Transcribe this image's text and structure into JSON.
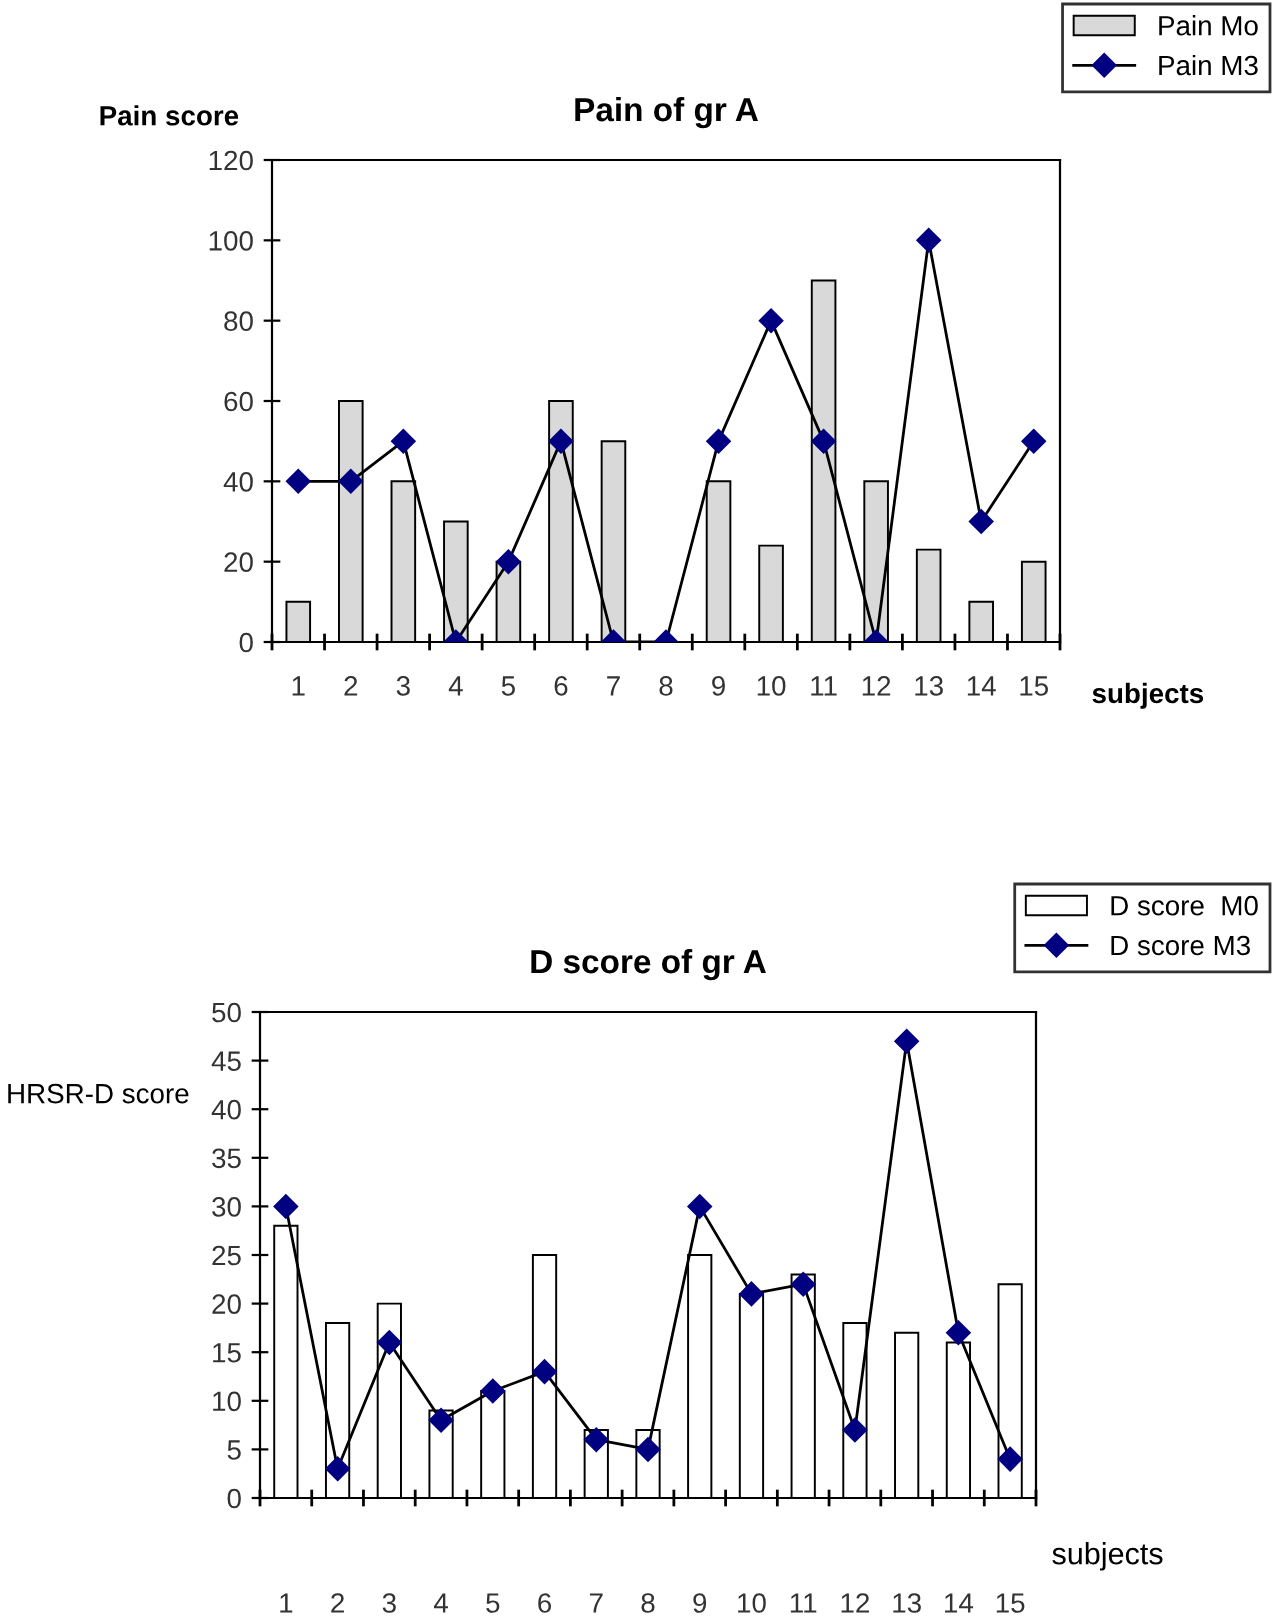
{
  "chart_data": [
    {
      "type": "bar",
      "title": "Pain of gr A",
      "ylabel": "Pain score",
      "xlabel": "subjects",
      "categories": [
        "1",
        "2",
        "3",
        "4",
        "5",
        "6",
        "7",
        "8",
        "9",
        "10",
        "11",
        "12",
        "13",
        "14",
        "15"
      ],
      "series": [
        {
          "name": "Pain Mo",
          "color": "#d9d9d9",
          "values": [
            10,
            60,
            40,
            30,
            20,
            60,
            50,
            0,
            40,
            24,
            90,
            40,
            23,
            10,
            20
          ]
        },
        {
          "name": "Pain M3",
          "type": "line",
          "color": "#000080",
          "values": [
            40,
            40,
            50,
            0,
            20,
            50,
            0,
            0,
            50,
            80,
            50,
            0,
            100,
            30,
            50
          ]
        }
      ],
      "ylim": [
        0,
        120
      ],
      "yticks": [
        0,
        20,
        40,
        60,
        80,
        100,
        120
      ],
      "legend": "top right",
      "marker": "diamond",
      "grid": false
    },
    {
      "type": "bar",
      "title": "D score of gr A",
      "ylabel": "HRSR-D score",
      "xlabel": "subjects",
      "categories": [
        "1",
        "2",
        "3",
        "4",
        "5",
        "6",
        "7",
        "8",
        "9",
        "10",
        "11",
        "12",
        "13",
        "14",
        "15"
      ],
      "series": [
        {
          "name": "D score  M0",
          "color": "#ffffff",
          "values": [
            28,
            18,
            20,
            9,
            11,
            25,
            7,
            7,
            25,
            21,
            23,
            18,
            17,
            16,
            22
          ]
        },
        {
          "name": "D score M3",
          "type": "line",
          "color": "#000080",
          "values": [
            30,
            3,
            16,
            8,
            11,
            13,
            6,
            5,
            30,
            21,
            22,
            7,
            47,
            17,
            4
          ]
        }
      ],
      "ylim": [
        0,
        50
      ],
      "yticks": [
        0,
        5,
        10,
        15,
        20,
        25,
        30,
        35,
        40,
        45,
        50
      ],
      "legend": "top right",
      "marker": "diamond",
      "grid": false
    }
  ]
}
